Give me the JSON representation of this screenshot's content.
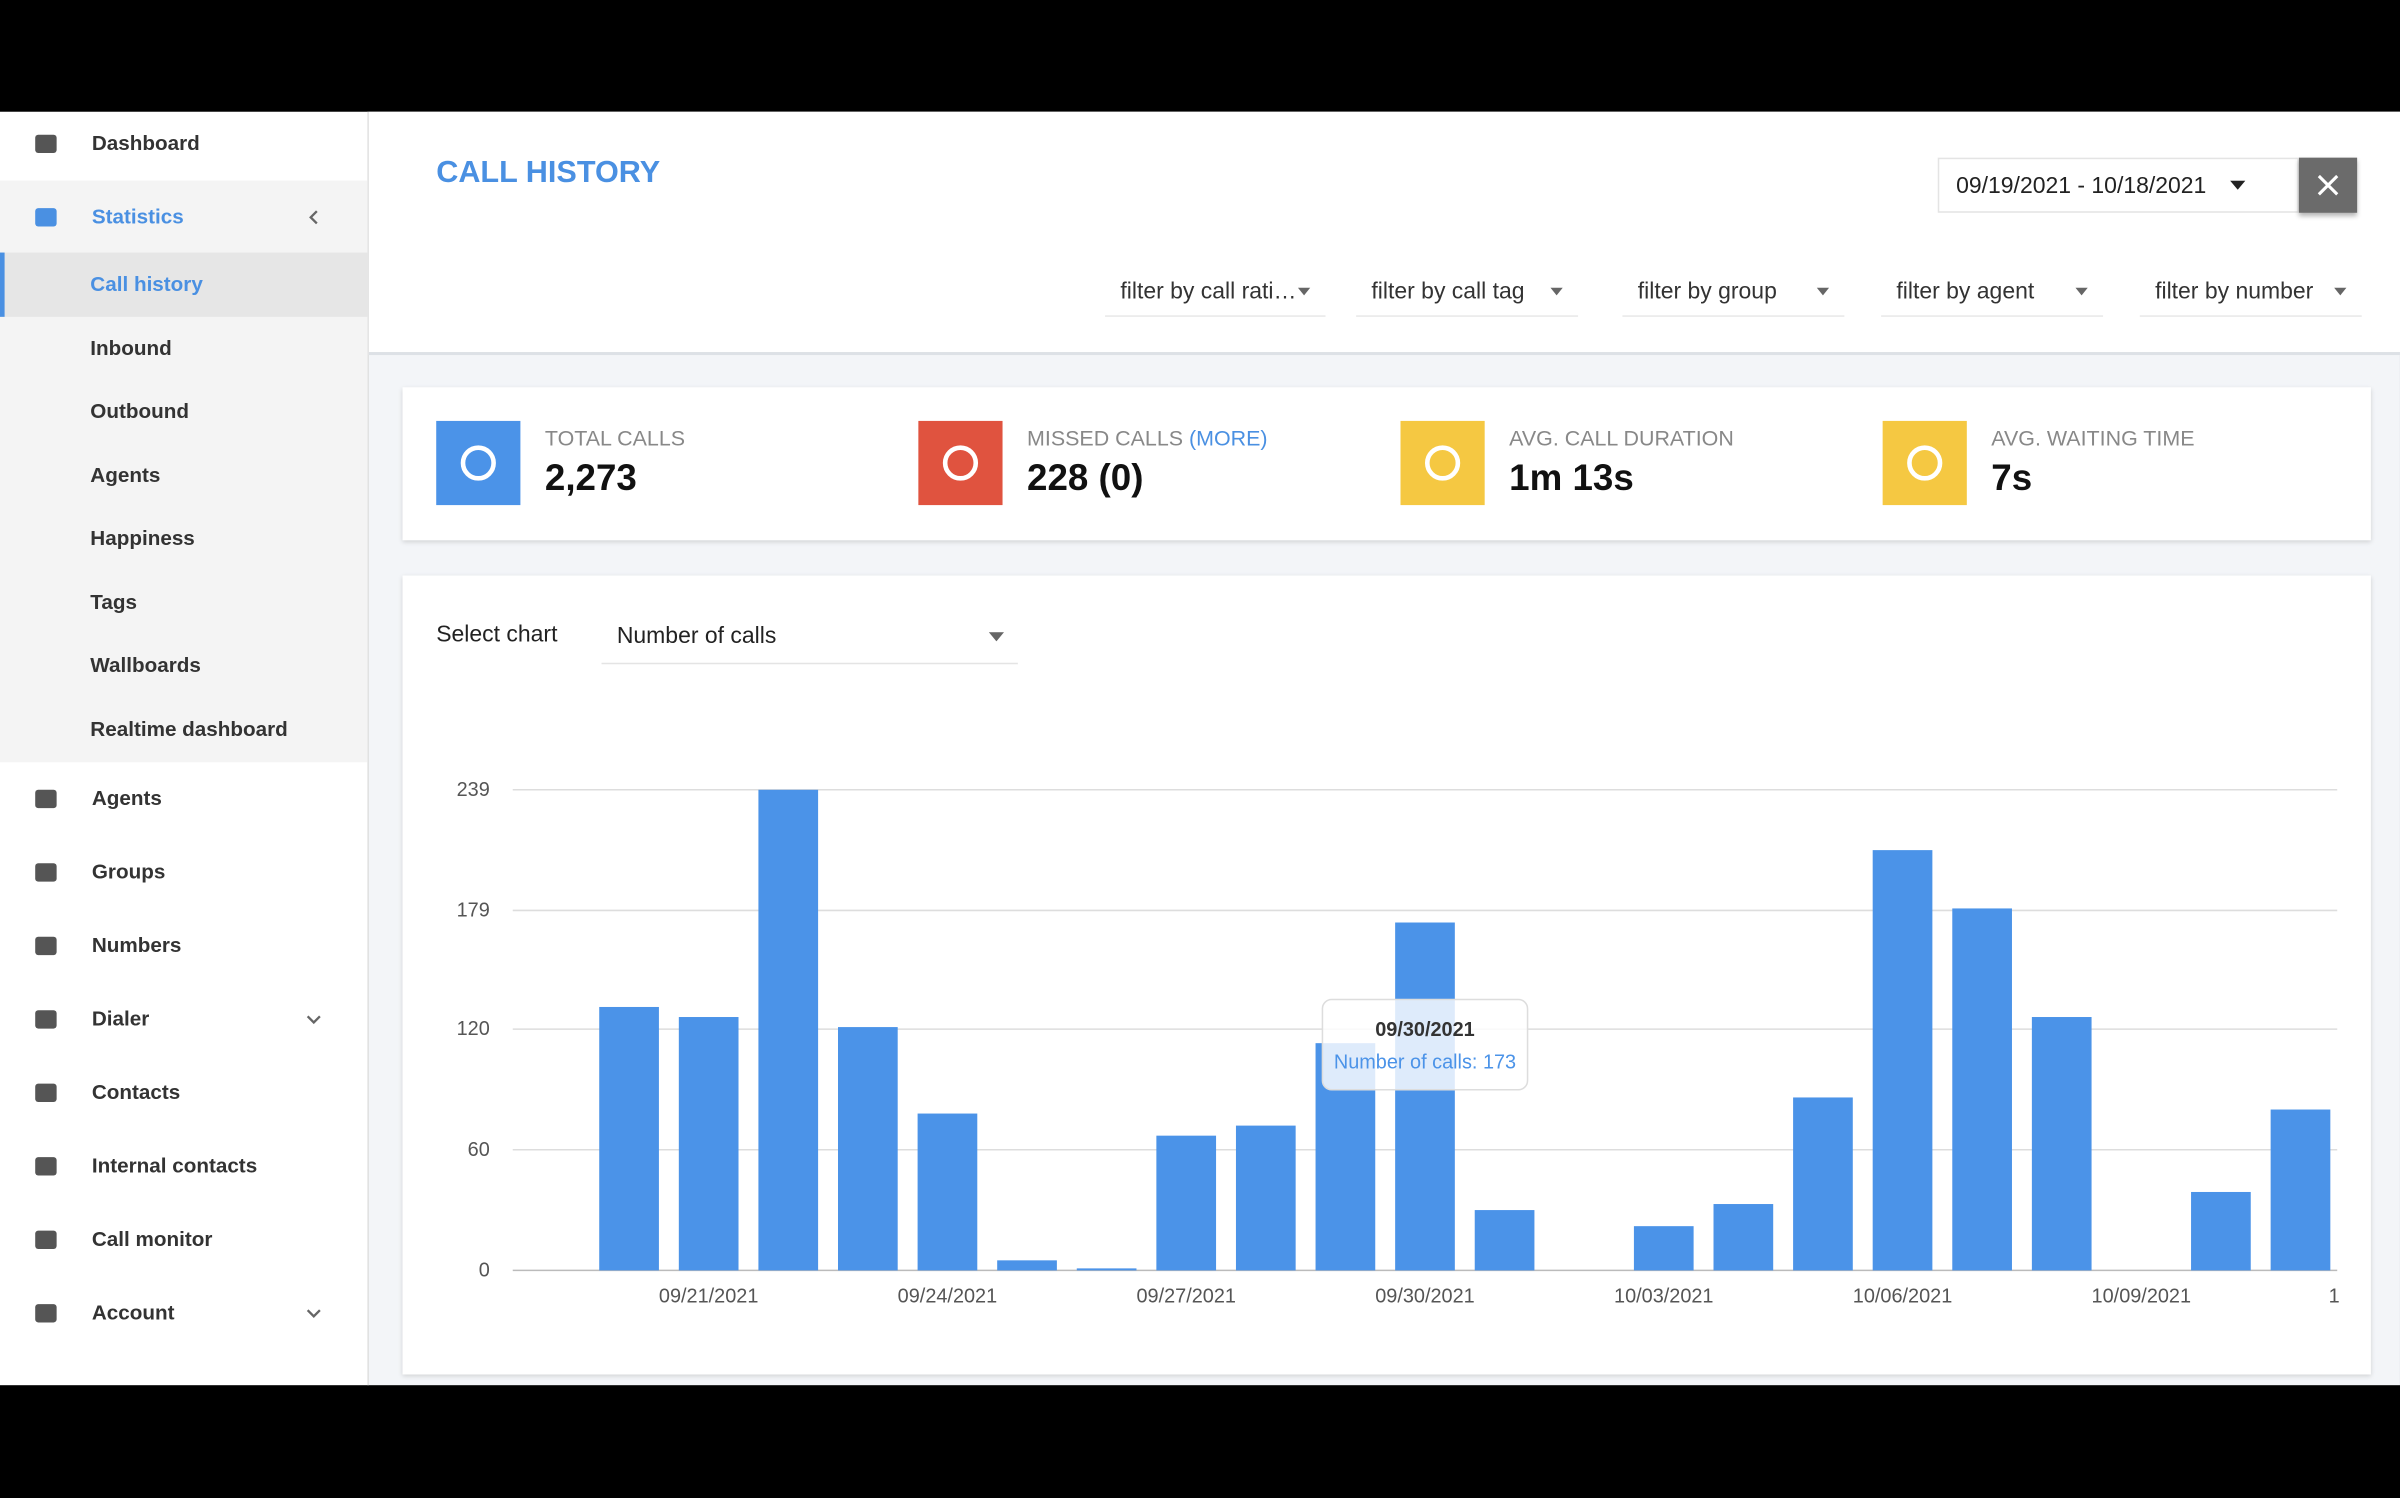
{
  "sidebar": {
    "items": [
      "Dashboard",
      "Statistics",
      "Agents",
      "Groups",
      "Numbers",
      "Dialer",
      "Contacts",
      "Internal contacts",
      "Call monitor",
      "Account"
    ],
    "sub_items": [
      "Call history",
      "Inbound",
      "Outbound",
      "Agents",
      "Happiness",
      "Tags",
      "Wallboards",
      "Realtime dashboard"
    ]
  },
  "header": {
    "title": "CALL HISTORY",
    "date_range": "09/19/2021 - 10/18/2021",
    "filters": [
      "filter by call rati…",
      "filter by call tag",
      "filter by group",
      "filter by agent",
      "filter by number"
    ]
  },
  "stats": [
    {
      "label": "TOTAL CALLS",
      "value": "2,273"
    },
    {
      "label": "MISSED CALLS",
      "link": "(MORE)",
      "value": "228 (0)"
    },
    {
      "label": "AVG. CALL DURATION",
      "value": "1m 13s"
    },
    {
      "label": "AVG. WAITING TIME",
      "value": "7s"
    }
  ],
  "chart_select": {
    "label": "Select chart",
    "value": "Number of calls"
  },
  "chart_data": {
    "type": "bar",
    "categories": [
      null,
      "09/21/2021",
      null,
      null,
      "09/24/2021",
      null,
      null,
      "09/27/2021",
      null,
      null,
      "09/30/2021",
      null,
      null,
      "10/03/2021",
      null,
      null,
      "10/06/2021",
      null,
      null,
      "10/09/2021",
      null,
      null,
      "1"
    ],
    "values": [
      131,
      126,
      239,
      121,
      78,
      5,
      1,
      67,
      72,
      113,
      173,
      30,
      0,
      22,
      33,
      86,
      209,
      180,
      126,
      0,
      39,
      80,
      null
    ],
    "color": "#4b93e8",
    "ylim": [
      0,
      239
    ],
    "yticks": [
      0,
      60,
      120,
      179,
      239
    ],
    "grid": true,
    "tooltip": {
      "title": "09/30/2021",
      "text": "Number of calls: 173"
    }
  }
}
